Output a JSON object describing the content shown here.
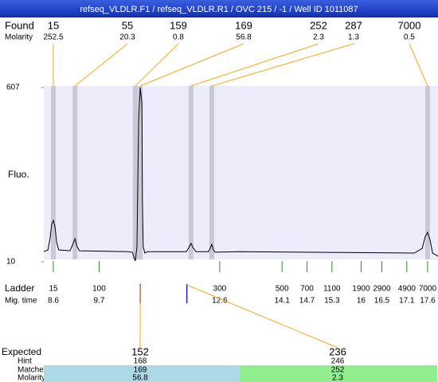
{
  "chart_data": {
    "type": "electropherogram",
    "title": "refseq_VLDLR.F1 / refseq_VLDLR.R1 / OVC 215 / -1 / Well ID 1011087",
    "y_label": "Fluo.",
    "ylim": [
      10,
      607
    ],
    "yticks": [
      607,
      10
    ],
    "xlim": [
      8.37,
      17.85
    ],
    "trace": {
      "color": "#000000",
      "x": [
        8.37,
        8.47,
        8.52,
        8.56,
        8.6,
        8.64,
        8.68,
        8.73,
        9.0,
        9.06,
        9.12,
        9.17,
        9.23,
        10.38,
        10.5,
        10.53,
        10.57,
        10.61,
        10.65,
        10.69,
        10.73,
        10.74,
        10.76,
        10.8,
        10.86,
        11.8,
        11.86,
        11.91,
        11.97,
        12.03,
        12.33,
        12.37,
        12.41,
        12.45,
        12.49,
        13.06,
        17.28,
        17.47,
        17.54,
        17.6,
        17.66,
        17.72,
        17.85
      ],
      "values": [
        45,
        51,
        89,
        138,
        152,
        130,
        75,
        51,
        48,
        67,
        89,
        62,
        48,
        45,
        43,
        29,
        13,
        62,
        498,
        607,
        552,
        225,
        62,
        40,
        45,
        45,
        59,
        73,
        56,
        45,
        45,
        56,
        70,
        51,
        43,
        45,
        40,
        56,
        95,
        111,
        84,
        40,
        29
      ]
    },
    "found": {
      "label": "Found",
      "molarity_label": "Molarity",
      "sizes": [
        15,
        55,
        159,
        169,
        252,
        287,
        7000
      ],
      "molarity": [
        252.5,
        20.3,
        0.8,
        56.8,
        2.3,
        1.3,
        0.5
      ],
      "peak_x": [
        8.6,
        9.12,
        10.57,
        10.69,
        11.91,
        12.41,
        17.6
      ]
    },
    "ladder": {
      "label": "Ladder",
      "mig_label": "Mig. time",
      "sizes": [
        15,
        100,
        300,
        500,
        700,
        1100,
        1900,
        2900,
        4900,
        7000
      ],
      "mig_times": [
        8.6,
        9.7,
        12.6,
        14.1,
        14.7,
        15.3,
        16,
        16.5,
        17.1,
        17.6
      ]
    },
    "expected": {
      "row_labels": [
        "Expected",
        "Hint",
        "Matched",
        "Molarity"
      ],
      "sizes": [
        152,
        236
      ],
      "hint": [
        168,
        246
      ],
      "matched": [
        169,
        252
      ],
      "molarity": [
        56.8,
        2.3
      ],
      "peak_x": [
        10.69,
        11.81
      ],
      "colors": [
        "#add8e6",
        "#90ee90"
      ]
    }
  }
}
